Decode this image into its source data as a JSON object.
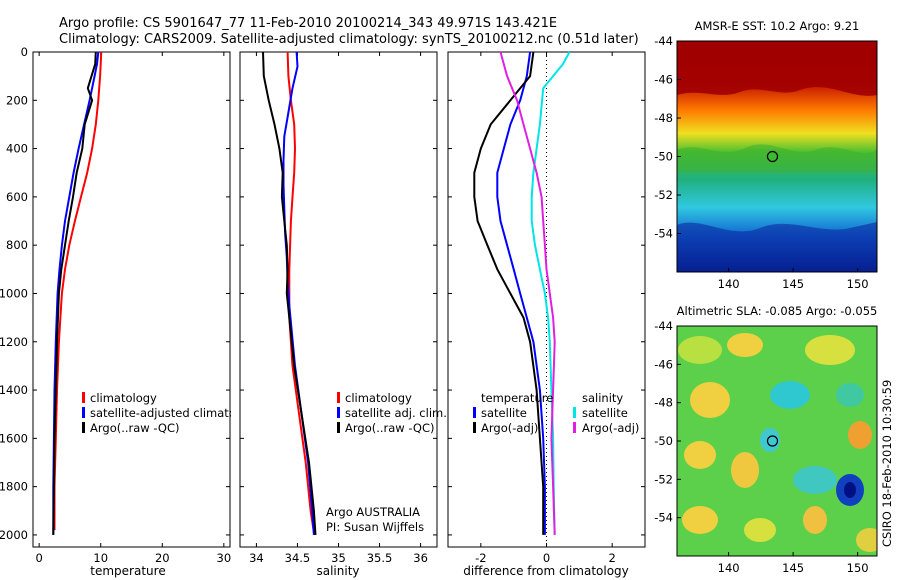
{
  "header": {
    "line1": "Argo profile: CS 5901647_77 11-Feb-2010 20100214_343 49.971S 143.421E",
    "line2": "Climatology: CARS2009. Satellite-adjusted climatology: synTS_20100212.nc (0.51d later)"
  },
  "side_stamp": "CSIRO 18-Feb-2010 10:30:59",
  "colors": {
    "climatology": "#ff0000",
    "satellite": "#0000ff",
    "argo": "#000000",
    "sat_salinity": "#00e5e5",
    "argo_salinity": "#e020e0"
  },
  "chart_data": [
    {
      "type": "line",
      "xlabel": "temperature",
      "ylabel": "",
      "xlim": [
        -1,
        31
      ],
      "ylim": [
        2050,
        0
      ],
      "xticks": [
        "0",
        "10",
        "20",
        "30"
      ],
      "yticks": [
        "0",
        "200",
        "400",
        "600",
        "800",
        "1000",
        "1200",
        "1400",
        "1600",
        "1800",
        "2000"
      ],
      "legend": [
        "climatology",
        "satellite-adjusted climatology",
        "Argo(..raw -QC)"
      ],
      "series": [
        {
          "name": "climatology",
          "color": "#ff0000",
          "x": [
            10.1,
            10.0,
            9.9,
            9.6,
            9.2,
            8.6,
            7.8,
            6.8,
            5.8,
            4.9,
            4.2,
            3.7,
            3.2,
            2.9,
            2.7,
            2.5,
            2.5
          ],
          "y": [
            0,
            50,
            100,
            200,
            300,
            400,
            500,
            600,
            700,
            800,
            900,
            1000,
            1200,
            1400,
            1600,
            1800,
            1980
          ]
        },
        {
          "name": "satellite-adjusted climatology",
          "color": "#0000ff",
          "x": [
            9.6,
            9.4,
            9.0,
            8.2,
            7.3,
            6.4,
            5.6,
            4.9,
            4.2,
            3.7,
            3.3,
            3.0,
            2.7,
            2.5,
            2.4,
            2.3,
            2.3
          ],
          "y": [
            0,
            50,
            100,
            200,
            300,
            400,
            500,
            600,
            700,
            800,
            900,
            1000,
            1200,
            1400,
            1600,
            1800,
            2000
          ]
        },
        {
          "name": "Argo(..raw -QC)",
          "color": "#000000",
          "x": [
            9.2,
            9.1,
            7.9,
            8.6,
            7.4,
            7.0,
            6.1,
            5.5,
            4.8,
            4.2,
            3.6,
            3.2,
            2.9,
            2.7,
            2.5,
            2.4,
            2.3
          ],
          "y": [
            0,
            50,
            150,
            200,
            300,
            400,
            500,
            600,
            700,
            800,
            900,
            1000,
            1200,
            1400,
            1600,
            1800,
            2000
          ]
        }
      ]
    },
    {
      "type": "line",
      "xlabel": "salinity",
      "xlim": [
        33.8,
        36.2
      ],
      "ylim": [
        2050,
        0
      ],
      "xticks": [
        "34",
        "34.5",
        "35",
        "35.5",
        "36"
      ],
      "legend": [
        "climatology",
        "satellite adj. clim.",
        "Argo(..raw -QC)"
      ],
      "annotations": [
        "Argo AUSTRALIA",
        "PI: Susan Wijffels"
      ],
      "series": [
        {
          "name": "climatology",
          "color": "#ff0000",
          "x": [
            34.38,
            34.39,
            34.42,
            34.46,
            34.47,
            34.46,
            34.44,
            34.42,
            34.41,
            34.4,
            34.4,
            34.4,
            34.44,
            34.52,
            34.6,
            34.66,
            34.7
          ],
          "y": [
            0,
            100,
            200,
            300,
            400,
            500,
            600,
            700,
            800,
            900,
            1000,
            1100,
            1300,
            1500,
            1700,
            1900,
            1990
          ]
        },
        {
          "name": "satellite adj. clim.",
          "color": "#0000ff",
          "x": [
            34.49,
            34.5,
            34.44,
            34.39,
            34.34,
            34.33,
            34.33,
            34.34,
            34.35,
            34.37,
            34.38,
            34.4,
            34.47,
            34.55,
            34.63,
            34.68,
            34.7
          ],
          "y": [
            0,
            60,
            150,
            250,
            350,
            450,
            550,
            650,
            750,
            850,
            950,
            1050,
            1300,
            1500,
            1700,
            1900,
            2000
          ]
        },
        {
          "name": "Argo(..raw -QC)",
          "color": "#000000",
          "x": [
            34.08,
            34.09,
            34.15,
            34.22,
            34.28,
            34.32,
            34.31,
            34.34,
            34.37,
            34.38,
            34.37,
            34.4,
            34.46,
            34.55,
            34.64,
            34.7,
            34.72
          ],
          "y": [
            0,
            100,
            200,
            300,
            400,
            500,
            600,
            700,
            800,
            900,
            1000,
            1100,
            1300,
            1500,
            1700,
            1900,
            2000
          ]
        }
      ]
    },
    {
      "type": "line",
      "xlabel": "difference from climatology",
      "xlim": [
        -3.0,
        3.0
      ],
      "ylim": [
        2050,
        0
      ],
      "xticks": [
        "-2",
        "0",
        "2"
      ],
      "legend": [
        "temperature",
        "satellite",
        "Argo(-adj)",
        "salinity",
        "satellite",
        "Argo(-adj)"
      ],
      "series": [
        {
          "name": "satellite",
          "color": "#0000ff",
          "x": [
            -0.5,
            -0.6,
            -0.8,
            -1.1,
            -1.3,
            -1.5,
            -1.5,
            -1.4,
            -1.2,
            -1.0,
            -0.8,
            -0.6,
            -0.4,
            -0.2,
            -0.1,
            -0.05,
            -0.05
          ],
          "y": [
            0,
            100,
            200,
            300,
            400,
            500,
            600,
            700,
            800,
            900,
            1000,
            1100,
            1200,
            1400,
            1600,
            1800,
            2000
          ]
        },
        {
          "name": "Argo(-adj)",
          "color": "#000000",
          "x": [
            -0.4,
            -0.5,
            -1.1,
            -1.7,
            -2.0,
            -2.2,
            -2.2,
            -2.1,
            -1.8,
            -1.5,
            -1.1,
            -0.7,
            -0.5,
            -0.3,
            -0.2,
            -0.1,
            -0.1
          ],
          "y": [
            0,
            100,
            200,
            300,
            400,
            500,
            600,
            700,
            800,
            900,
            1000,
            1100,
            1200,
            1400,
            1600,
            1800,
            2000
          ]
        },
        {
          "name": "satellite",
          "color": "#00e5e5",
          "x": [
            0.7,
            0.5,
            -0.1,
            -0.2,
            -0.3,
            -0.4,
            -0.45,
            -0.45,
            -0.35,
            -0.2,
            -0.05,
            0.05,
            0.1,
            0.15,
            0.2,
            0.22,
            0.25
          ],
          "y": [
            0,
            50,
            150,
            300,
            400,
            500,
            600,
            700,
            800,
            900,
            1000,
            1100,
            1200,
            1400,
            1600,
            1800,
            2000
          ]
        },
        {
          "name": "Argo(-adj)",
          "color": "#e020e0",
          "x": [
            -1.4,
            -1.2,
            -0.9,
            -0.7,
            -0.5,
            -0.3,
            -0.15,
            -0.1,
            -0.05,
            0.0,
            0.1,
            0.2,
            0.25,
            0.2,
            0.15,
            0.2,
            0.25
          ],
          "y": [
            0,
            100,
            200,
            300,
            400,
            500,
            600,
            700,
            800,
            900,
            1000,
            1100,
            1200,
            1400,
            1600,
            1800,
            2000
          ]
        }
      ]
    },
    {
      "type": "heatmap",
      "title": "AMSR-E SST: 10.2  Argo: 9.21",
      "xlim": [
        136,
        151.5
      ],
      "ylim": [
        -56,
        -44
      ],
      "xticks": [
        "140",
        "145",
        "150"
      ],
      "yticks": [
        "-44",
        "-46",
        "-48",
        "-50",
        "-52",
        "-54"
      ],
      "marker": {
        "lon": 143.4,
        "lat": -50.0
      }
    },
    {
      "type": "heatmap",
      "title": "Altimetric SLA: -0.085  Argo: -0.055",
      "xlim": [
        136,
        151.5
      ],
      "ylim": [
        -56,
        -44
      ],
      "xticks": [
        "140",
        "145",
        "150"
      ],
      "yticks": [
        "-44",
        "-46",
        "-48",
        "-50",
        "-52",
        "-54"
      ],
      "marker": {
        "lon": 143.4,
        "lat": -50.0
      }
    }
  ]
}
